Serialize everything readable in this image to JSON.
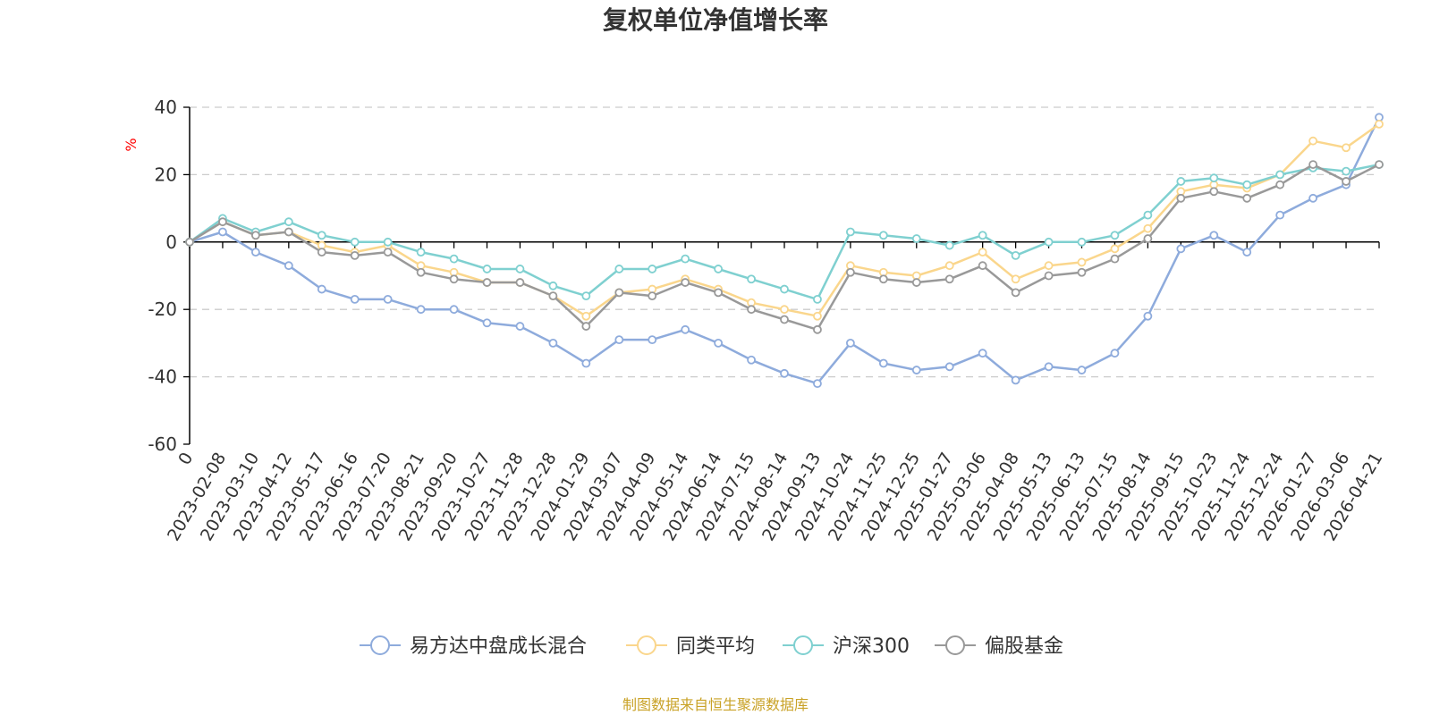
{
  "chart_data": {
    "type": "line",
    "title": "复权单位净值增长率",
    "ylabel": "%",
    "ylim": [
      -60,
      40
    ],
    "yticks": [
      40,
      20,
      0,
      -20,
      -40,
      -60
    ],
    "categories": [
      "0",
      "2023-02-08",
      "2023-03-10",
      "2023-04-12",
      "2023-05-17",
      "2023-06-16",
      "2023-07-20",
      "2023-08-21",
      "2023-09-20",
      "2023-10-27",
      "2023-11-28",
      "2023-12-28",
      "2024-01-29",
      "2024-03-07",
      "2024-04-09",
      "2024-05-14",
      "2024-06-14",
      "2024-07-15",
      "2024-08-14",
      "2024-09-13",
      "2024-10-24",
      "2024-11-25",
      "2024-12-25",
      "2025-01-27",
      "2025-03-06",
      "2025-04-08",
      "2025-05-13",
      "2025-06-13",
      "2025-07-15",
      "2025-08-14",
      "2025-09-15",
      "2025-10-23",
      "2025-11-24",
      "2025-12-24",
      "2026-01-27",
      "2026-03-06",
      "2026-04-21"
    ],
    "series": [
      {
        "name": "易方达中盘成长混合",
        "color": "#8eabdc",
        "values": [
          0,
          3,
          -3,
          -7,
          -14,
          -17,
          -17,
          -20,
          -20,
          -24,
          -25,
          -30,
          -36,
          -29,
          -29,
          -26,
          -30,
          -35,
          -39,
          -42,
          -30,
          -36,
          -38,
          -37,
          -33,
          -41,
          -37,
          -38,
          -33,
          -22,
          -2,
          2,
          -3,
          8,
          13,
          17,
          37
        ]
      },
      {
        "name": "同类平均",
        "color": "#fad68c",
        "values": [
          0,
          6,
          2,
          3,
          -1,
          -3,
          -1,
          -7,
          -9,
          -12,
          -12,
          -16,
          -22,
          -15,
          -14,
          -11,
          -14,
          -18,
          -20,
          -22,
          -7,
          -9,
          -10,
          -7,
          -3,
          -11,
          -7,
          -6,
          -2,
          4,
          15,
          17,
          16,
          20,
          30,
          28,
          35
        ]
      },
      {
        "name": "沪深300",
        "color": "#7fd0d0",
        "values": [
          0,
          7,
          3,
          6,
          2,
          0,
          0,
          -3,
          -5,
          -8,
          -8,
          -13,
          -16,
          -8,
          -8,
          -5,
          -8,
          -11,
          -14,
          -17,
          3,
          2,
          1,
          -1,
          2,
          -4,
          0,
          0,
          2,
          8,
          18,
          19,
          17,
          20,
          22,
          21,
          23
        ]
      },
      {
        "name": "偏股基金",
        "color": "#999999",
        "values": [
          0,
          6,
          2,
          3,
          -3,
          -4,
          -3,
          -9,
          -11,
          -12,
          -12,
          -16,
          -25,
          -15,
          -16,
          -12,
          -15,
          -20,
          -23,
          -26,
          -9,
          -11,
          -12,
          -11,
          -7,
          -15,
          -10,
          -9,
          -5,
          1,
          13,
          15,
          13,
          17,
          23,
          18,
          23
        ]
      }
    ]
  },
  "source_note": "制图数据来自恒生聚源数据库",
  "colors": {
    "axis": "#000000",
    "grid": "#cccccc",
    "unit": "#ff0000",
    "source": "#c9a227"
  }
}
